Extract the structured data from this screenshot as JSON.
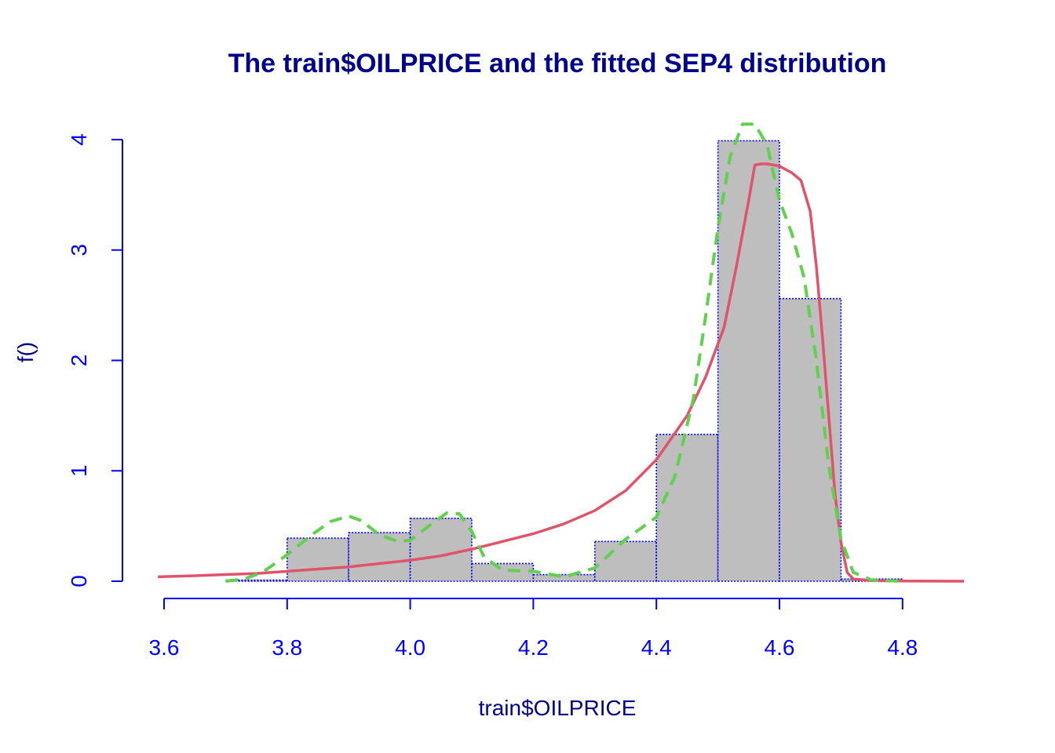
{
  "chart_data": {
    "type": "histogram",
    "title": "The train$OILPRICE and the fitted SEP4 distribution",
    "xlabel": "train$OILPRICE",
    "ylabel": "f()",
    "xlim": [
      3.58,
      4.9
    ],
    "ylim": [
      0,
      4
    ],
    "x_ticks": [
      3.6,
      3.8,
      4.0,
      4.2,
      4.4,
      4.6,
      4.8
    ],
    "x_tick_labels": [
      "3.6",
      "3.8",
      "4.0",
      "4.2",
      "4.4",
      "4.6",
      "4.8"
    ],
    "y_ticks": [
      0,
      1,
      2,
      3,
      4
    ],
    "y_tick_labels": [
      "0",
      "1",
      "2",
      "3",
      "4"
    ],
    "grid": false,
    "colors": {
      "title": "#00008B",
      "axis": "#0000FF",
      "bar_fill": "#BEBEBE",
      "bar_border": "#0000FF",
      "fitted": "#DF536B",
      "kde": "#61D04F"
    },
    "bins": [
      {
        "x0": 3.7,
        "x1": 3.8,
        "density": 0.01
      },
      {
        "x0": 3.8,
        "x1": 3.9,
        "density": 0.39
      },
      {
        "x0": 3.9,
        "x1": 4.0,
        "density": 0.44
      },
      {
        "x0": 4.0,
        "x1": 4.1,
        "density": 0.57
      },
      {
        "x0": 4.1,
        "x1": 4.2,
        "density": 0.16
      },
      {
        "x0": 4.2,
        "x1": 4.3,
        "density": 0.06
      },
      {
        "x0": 4.3,
        "x1": 4.4,
        "density": 0.36
      },
      {
        "x0": 4.4,
        "x1": 4.5,
        "density": 1.33
      },
      {
        "x0": 4.5,
        "x1": 4.6,
        "density": 3.99
      },
      {
        "x0": 4.6,
        "x1": 4.7,
        "density": 2.56
      },
      {
        "x0": 4.7,
        "x1": 4.8,
        "density": 0.02
      }
    ],
    "series": [
      {
        "style": "solid",
        "x": [
          3.59,
          3.65,
          3.7,
          3.75,
          3.8,
          3.85,
          3.9,
          3.95,
          4.0,
          4.05,
          4.1,
          4.15,
          4.2,
          4.25,
          4.3,
          4.35,
          4.4,
          4.45,
          4.48,
          4.51,
          4.53,
          4.55,
          4.56,
          4.57,
          4.58,
          4.6,
          4.62,
          4.635,
          4.65,
          4.66,
          4.67,
          4.68,
          4.69,
          4.7,
          4.71,
          4.72,
          4.75,
          4.8,
          4.9
        ],
        "y": [
          0.04,
          0.05,
          0.06,
          0.07,
          0.09,
          0.11,
          0.13,
          0.16,
          0.19,
          0.23,
          0.29,
          0.36,
          0.43,
          0.52,
          0.64,
          0.82,
          1.1,
          1.5,
          1.85,
          2.3,
          2.85,
          3.45,
          3.77,
          3.78,
          3.78,
          3.76,
          3.7,
          3.63,
          3.35,
          2.85,
          2.2,
          1.5,
          0.8,
          0.35,
          0.08,
          0.02,
          0.005,
          0.002,
          0.0
        ]
      },
      {
        "style": "dashed",
        "x": [
          3.7,
          3.73,
          3.76,
          3.8,
          3.84,
          3.87,
          3.9,
          3.92,
          3.95,
          3.98,
          4.0,
          4.03,
          4.06,
          4.08,
          4.1,
          4.12,
          4.15,
          4.2,
          4.25,
          4.3,
          4.35,
          4.4,
          4.43,
          4.46,
          4.48,
          4.5,
          4.52,
          4.54,
          4.56,
          4.58,
          4.6,
          4.62,
          4.64,
          4.66,
          4.68,
          4.7,
          4.72,
          4.75,
          4.8
        ],
        "y": [
          0.0,
          0.02,
          0.08,
          0.24,
          0.42,
          0.54,
          0.59,
          0.55,
          0.42,
          0.36,
          0.37,
          0.5,
          0.62,
          0.61,
          0.45,
          0.22,
          0.1,
          0.09,
          0.04,
          0.12,
          0.38,
          0.58,
          0.95,
          1.65,
          2.4,
          3.2,
          3.85,
          4.14,
          4.14,
          3.95,
          3.45,
          3.15,
          2.75,
          2.0,
          1.05,
          0.38,
          0.08,
          0.01,
          0.0
        ]
      }
    ]
  }
}
